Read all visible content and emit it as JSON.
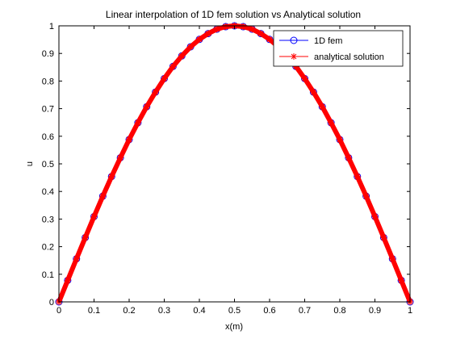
{
  "chart_data": {
    "type": "line",
    "title": "Linear interpolation of 1D fem solution vs Analytical solution",
    "xlabel": "x(m)",
    "ylabel": "u",
    "xlim": [
      0,
      1
    ],
    "ylim": [
      0,
      1
    ],
    "xticks": [
      "0",
      "0.1",
      "0.2",
      "0.3",
      "0.4",
      "0.5",
      "0.6",
      "0.7",
      "0.8",
      "0.9",
      "1"
    ],
    "yticks": [
      "0",
      "0.1",
      "0.2",
      "0.3",
      "0.4",
      "0.5",
      "0.6",
      "0.7",
      "0.8",
      "0.9",
      "1"
    ],
    "grid": false,
    "legend_position": "top-right",
    "x": [
      0,
      0.025,
      0.05,
      0.075,
      0.1,
      0.125,
      0.15,
      0.175,
      0.2,
      0.225,
      0.25,
      0.275,
      0.3,
      0.325,
      0.35,
      0.375,
      0.4,
      0.425,
      0.45,
      0.475,
      0.5,
      0.525,
      0.55,
      0.575,
      0.6,
      0.625,
      0.65,
      0.675,
      0.7,
      0.725,
      0.75,
      0.775,
      0.8,
      0.825,
      0.85,
      0.875,
      0.9,
      0.925,
      0.95,
      0.975,
      1
    ],
    "series": [
      {
        "name": "1D fem",
        "color": "#0000ff",
        "marker": "circle",
        "values": [
          0,
          0.078,
          0.156,
          0.233,
          0.309,
          0.383,
          0.454,
          0.522,
          0.588,
          0.649,
          0.707,
          0.76,
          0.809,
          0.853,
          0.891,
          0.924,
          0.951,
          0.972,
          0.988,
          0.997,
          1.0,
          0.997,
          0.988,
          0.972,
          0.951,
          0.924,
          0.891,
          0.853,
          0.809,
          0.76,
          0.707,
          0.649,
          0.588,
          0.522,
          0.454,
          0.383,
          0.309,
          0.233,
          0.156,
          0.078,
          0
        ]
      },
      {
        "name": "analytical solution",
        "color": "#ff0000",
        "marker": "star",
        "values": [
          0,
          0.078,
          0.156,
          0.233,
          0.309,
          0.383,
          0.454,
          0.522,
          0.588,
          0.649,
          0.707,
          0.76,
          0.809,
          0.853,
          0.891,
          0.924,
          0.951,
          0.972,
          0.988,
          0.997,
          1.0,
          0.997,
          0.988,
          0.972,
          0.951,
          0.924,
          0.891,
          0.853,
          0.809,
          0.76,
          0.707,
          0.649,
          0.588,
          0.522,
          0.454,
          0.383,
          0.309,
          0.233,
          0.156,
          0.078,
          0
        ]
      }
    ]
  }
}
